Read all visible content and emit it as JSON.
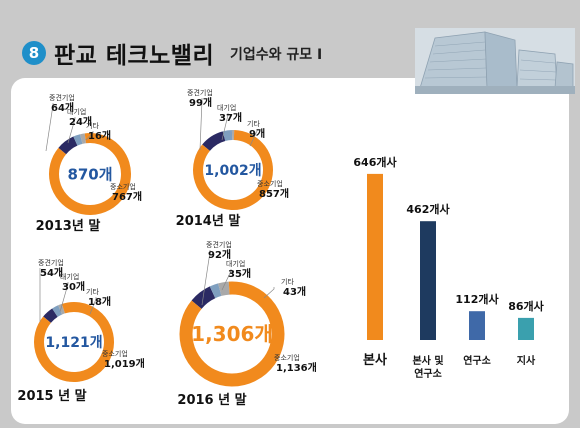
{
  "header": {
    "badge": "8",
    "title": "판교 테크노밸리",
    "subtitle": "기업수와 규모 I"
  },
  "colors": {
    "medium": "#2b2a63",
    "large": "#7f9fbf",
    "other": "#a9a9a9",
    "sme": "#f18a1d",
    "center_text": "#2357a0",
    "center_text_2016": "#f18a1d",
    "bar_hq": "#f18a1d",
    "bar_hq_branch": "#1e3a5f",
    "bar_lab": "#3f69a8",
    "bar_branch": "#3aa0ae"
  },
  "chart_data": [
    {
      "type": "pie",
      "title": "2013년 말",
      "total_label": "870개",
      "slices": [
        {
          "category": "중견기업",
          "value": 64,
          "label": "64개"
        },
        {
          "category": "대기업",
          "value": 24,
          "label": "24개"
        },
        {
          "category": "기타",
          "value": 16,
          "label": "16개"
        },
        {
          "category": "중소기업",
          "value": 767,
          "label": "767개"
        }
      ]
    },
    {
      "type": "pie",
      "title": "2014년 말",
      "total_label": "1,002개",
      "slices": [
        {
          "category": "중견기업",
          "value": 99,
          "label": "99개"
        },
        {
          "category": "대기업",
          "value": 37,
          "label": "37개"
        },
        {
          "category": "기타",
          "value": 9,
          "label": "9개"
        },
        {
          "category": "중소기업",
          "value": 857,
          "label": "857개"
        }
      ]
    },
    {
      "type": "pie",
      "title": "2015 년 말",
      "total_label": "1,121개",
      "slices": [
        {
          "category": "중견기업",
          "value": 54,
          "label": "54개"
        },
        {
          "category": "대기업",
          "value": 30,
          "label": "30개"
        },
        {
          "category": "기타",
          "value": 18,
          "label": "18개"
        },
        {
          "category": "중소기업",
          "value": 1019,
          "label": "1,019개"
        }
      ]
    },
    {
      "type": "pie",
      "title": "2016 년 말",
      "total_label": "1,306개",
      "slices": [
        {
          "category": "중견기업",
          "value": 92,
          "label": "92개"
        },
        {
          "category": "대기업",
          "value": 35,
          "label": "35개"
        },
        {
          "category": "기타",
          "value": 43,
          "label": "43개"
        },
        {
          "category": "중소기업",
          "value": 1136,
          "label": "1,136개"
        }
      ]
    },
    {
      "type": "bar",
      "categories": [
        "본사",
        "본사 및\n연구소",
        "연구소",
        "지사"
      ],
      "values": [
        646,
        462,
        112,
        86
      ],
      "value_labels": [
        "646개사",
        "462개사",
        "112개사",
        "86개사"
      ],
      "ylim": [
        0,
        700
      ]
    }
  ]
}
